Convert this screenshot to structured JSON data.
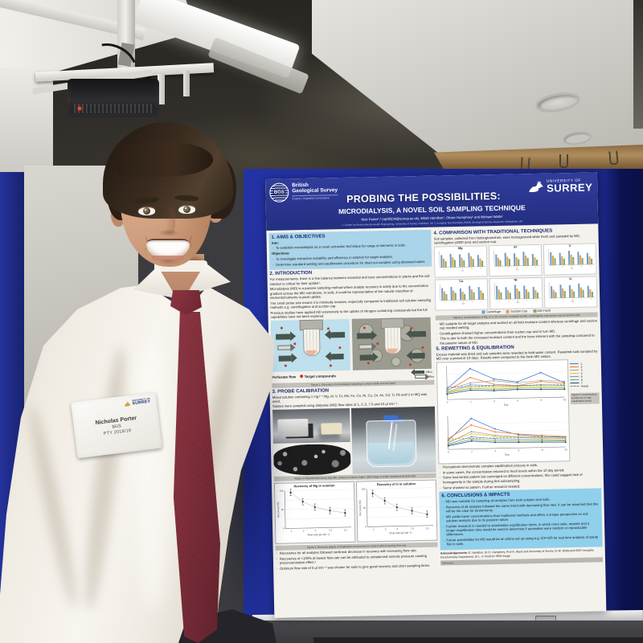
{
  "badge": {
    "name": "Nicholas Porter",
    "org": "BGS",
    "year": "PTY 2018/19",
    "logo_line1": "UNIVERSITY OF",
    "logo_line2": "SURREY"
  },
  "poster": {
    "header": {
      "bgs_acronym": "BGS",
      "bgs_name1": "British",
      "bgs_name2": "Geological Survey",
      "bgs_tagline": "Expert | Impartial | Innovative",
      "surrey_line1": "UNIVERSITY OF",
      "surrey_line2": "SURREY",
      "title": "PROBING THE POSSIBILITIES:",
      "subtitle": "MICRODIALYSIS, A NOVEL SOIL SAMPLING TECHNIQUE",
      "authors": "Nick Porter¹,² (np00234@surrey.ac.uk), Elliott Hamilton², Olivier Humphrey² and Michael Watts²",
      "affiliations": "1. Centre for Environmental Health Engineering, University of Surrey, Guildford, UK    2. Inorganic Geochemistry, British Geological Survey, Keyworth, Nottingham, UK"
    },
    "s1": {
      "heading": "1. AIMS & OBJECTIVES",
      "aim_label": "Aim:",
      "aim": "To establish microdialysis as a novel extraction technique for range of elements in soils.",
      "objectives_label": "Objectives:",
      "objectives": [
        "To investigate extraction suitability and efficiency in solution for target analytes.",
        "Determine standard wetting and equilibration procedure for dried out samples using deionised water."
      ]
    },
    "s2": {
      "heading": "2. INTRODUCTION",
      "paragraphs": [
        "For measurements, there is a fine balance between essential and toxic concentrations in plants and the soil solution is critical for their uptake¹.",
        "Microdialysis (MD) is a passive sampling method where analyte recovery is solely due to the concentration gradient across the MD membrane; in soils, it could be representative of the natural massflow of elements/nutrients to plant uptake.",
        "The small probe size means it is minimally invasive, especially compared to traditional soil solution sampling methods e.g. centrifugation and suction cup.",
        "Previous studies have applied MD extensively to the uptake of nitrogen containing compounds but the full capabilities have not been explored."
      ],
      "fig1": {
        "legend_perfusate": "Perfusate flow",
        "legend_target": "Target compounds",
        "legend_influx": "Influx",
        "legend_efflux": "Efflux",
        "caption": "Figure 1: Schematic of microdialysis sampling in solution (left) and soil (right)"
      }
    },
    "s3": {
      "heading": "3. PROBE CALIBRATION",
      "paragraphs": [
        "Mixed solution containing 1 mg l⁻¹ Mg, Al, V, Cr, Mn, Fe, Co, Ni, Cu, Zn, As, Cd, Tl, Pb and U in MQ was used.",
        "Solutes were sampled using dialysate (MQ) flow rates of 1, 3, 5, 7.5 and 10 µl min⁻¹."
      ],
      "fig2_caption": "Figure 2: Experimental set up (top left), probes in solution (right), SEM image of probe membrane (bottom left)",
      "fig3_caption": "Figure 3: Recovery graphs of magnesium and uranium in solution with increasing flow rate",
      "bullets": [
        "Recoveries for all analytes followed nonlinear decrease in recovery with increasing flow rate.",
        "Recoveries of <100% at lowest flow rate can be attributed to unbalanced osmotic pressure causing preconcentration effect.²",
        "Optimum flow rate of 5 µl min⁻¹ was chosen for soils to give good recovery and short sampling times."
      ]
    },
    "s4": {
      "heading": "4. COMPARISON WITH TRADITIONAL TECHNIQUES",
      "paragraph": "Soil samples, collected from Nottinghamshire, were homogenised while fresh and sampled by MD, centrifugation (4000 rpm) and suction cup.",
      "fig4_caption": "Figure 4: Concentrations of Mg, Al, V, Cu, Ni and U sampled by MD, centrifugation and suction cup across five soils",
      "bullets": [
        "MD suitable for all target analytes and worked on all field moisture content whereas centrifuge and suction cup needed wetting.",
        "Centrifugation showed higher concentrations than suction cup and in turn MD.",
        "This is due to both the increased moisture content and the force inherent with the sampling compared to the passive nature of MD."
      ]
    },
    "s5": {
      "heading": "5. REWETTING & EQUILIBRATION",
      "paragraph": "Excess material was dried and sub samples were rewetted to field water content. Rewetted soils sampled by MD over a period of 10 days. Results were compared to the fresh MD values.",
      "fig5_caption": "Figure 5: Concentrations by MD over 10 day equilibration period",
      "bullets": [
        "Fluctuations demonstrate complex equilibration process in soils.",
        "In some cases, the concentration returned to fresh levels within the 10 day period.",
        "Some had similar pattern but converged on different concentrations, this could suggest lack of homogeneity in the sample during first subsampling.",
        "Some showed no pattern. Further research needed."
      ]
    },
    "s6": {
      "heading": "6. CONCLUSIONS & IMPACTS",
      "bullets": [
        "MD was suitable for sampling all analytes from both solution and soils.",
        "Recovery of all analytes followed the same trend with decreasing flow rate. It can be assumed that this will be the case for all elements.",
        "MD yields lower concentrations than traditional methods and offers a unique perspective on soil solution analysis due to its passive nature.",
        "Further research is needed to standardise equilibration times, in which more soils, repeats and a longer equilibration time would be used to determine if anomalies were random or reproducible differences.",
        "Future possibilities for MD would be an online set up using e.g. ICP-MS for real time analysis of solute flux in soils."
      ],
      "ack_label": "Acknowledgements:",
      "ack": "E. Hamilton, Dr O. Humphrey, Prof N. Ward and University of Surrey, Dr M. Watts and BGS Inorganic Geochemistry Department, Dr L. P. Field for SEM image",
      "references_label": "References"
    }
  },
  "charts": {
    "scatter": {
      "xlabel": "Flow rate (µl min⁻¹)",
      "ylabel": "Recovery (%)",
      "x": [
        1,
        3,
        5,
        7.5,
        10
      ],
      "plots": {
        "mg": {
          "title": "Recovery of Mg in solution",
          "y": [
            95,
            70,
            55,
            45,
            38
          ]
        },
        "u": {
          "title": "Recovery of U in solution",
          "y": [
            88,
            68,
            50,
            40,
            30
          ]
        }
      }
    },
    "bars": {
      "legend": [
        "Centrifuge",
        "Suction Cup",
        "MD Fresh"
      ],
      "colors": [
        "#6f9ec9",
        "#d9a45b",
        "#87a96b"
      ],
      "xlabel": "Soil",
      "categories": [
        "1",
        "2",
        "3",
        "4",
        "5"
      ],
      "elements": [
        {
          "label": "Mg",
          "series": [
            [
              78,
              85,
              80,
              88,
              74
            ],
            [
              55,
              62,
              58,
              66,
              52
            ],
            [
              40,
              46,
              43,
              50,
              38
            ]
          ]
        },
        {
          "label": "Al",
          "series": [
            [
              70,
              78,
              74,
              82,
              68
            ],
            [
              50,
              56,
              52,
              60,
              48
            ],
            [
              36,
              42,
              39,
              46,
              34
            ]
          ]
        },
        {
          "label": "V",
          "series": [
            [
              82,
              76,
              88,
              80,
              72
            ],
            [
              60,
              55,
              64,
              58,
              50
            ],
            [
              44,
              40,
              48,
              42,
              36
            ]
          ]
        },
        {
          "label": "Cu",
          "series": [
            [
              74,
              80,
              70,
              84,
              76
            ],
            [
              54,
              58,
              50,
              62,
              56
            ],
            [
              38,
              44,
              36,
              46,
              40
            ]
          ]
        },
        {
          "label": "Ni",
          "series": [
            [
              80,
              72,
              84,
              78,
              70
            ],
            [
              58,
              52,
              62,
              56,
              50
            ],
            [
              42,
              38,
              46,
              40,
              36
            ]
          ]
        },
        {
          "label": "U",
          "series": [
            [
              68,
              76,
              72,
              80,
              66
            ],
            [
              48,
              54,
              50,
              58,
              46
            ],
            [
              34,
              40,
              36,
              44,
              32
            ]
          ]
        }
      ]
    },
    "rewet": {
      "xlabel": "Day",
      "x": [
        0,
        2,
        4,
        6,
        8,
        10
      ],
      "legend": [
        "1",
        "2",
        "3",
        "4",
        "5",
        "6",
        "7",
        "Fresh"
      ],
      "colors": [
        "#4472c4",
        "#ed7d31",
        "#a5a5a5",
        "#ffc000",
        "#5b9bd5",
        "#70ad47",
        "#264478"
      ],
      "fresh_color": "#7f7f7f",
      "charts": [
        {
          "fresh": 35,
          "series": [
            [
              30,
              85,
              55,
              45,
              70,
              40
            ],
            [
              25,
              60,
              40,
              35,
              45,
              38
            ],
            [
              28,
              45,
              50,
              42,
              48,
              44
            ],
            [
              20,
              35,
              30,
              32,
              32,
              30
            ],
            [
              22,
              40,
              36,
              34,
              36,
              33
            ],
            [
              18,
              30,
              26,
              28,
              27,
              26
            ],
            [
              15,
              25,
              22,
              24,
              23,
              22
            ]
          ]
        },
        {
          "fresh": 24,
          "series": [
            [
              20,
              70,
              45,
              30,
              25,
              22
            ],
            [
              25,
              55,
              38,
              32,
              28,
              24
            ],
            [
              15,
              40,
              30,
              26,
              22,
              20
            ],
            [
              18,
              35,
              28,
              24,
              21,
              19
            ],
            [
              12,
              28,
              22,
              20,
              18,
              16
            ],
            [
              10,
              22,
              18,
              16,
              15,
              14
            ],
            [
              8,
              18,
              14,
              13,
              12,
              11
            ]
          ]
        }
      ]
    }
  },
  "palette": {
    "board_blue": "#1d2a8e",
    "header_blue": "#2a3690",
    "tie_maroon": "#7a2a36",
    "aims_box_blue": "#a9d4e9",
    "conclusions_box_blue": "#8fd0ec"
  }
}
